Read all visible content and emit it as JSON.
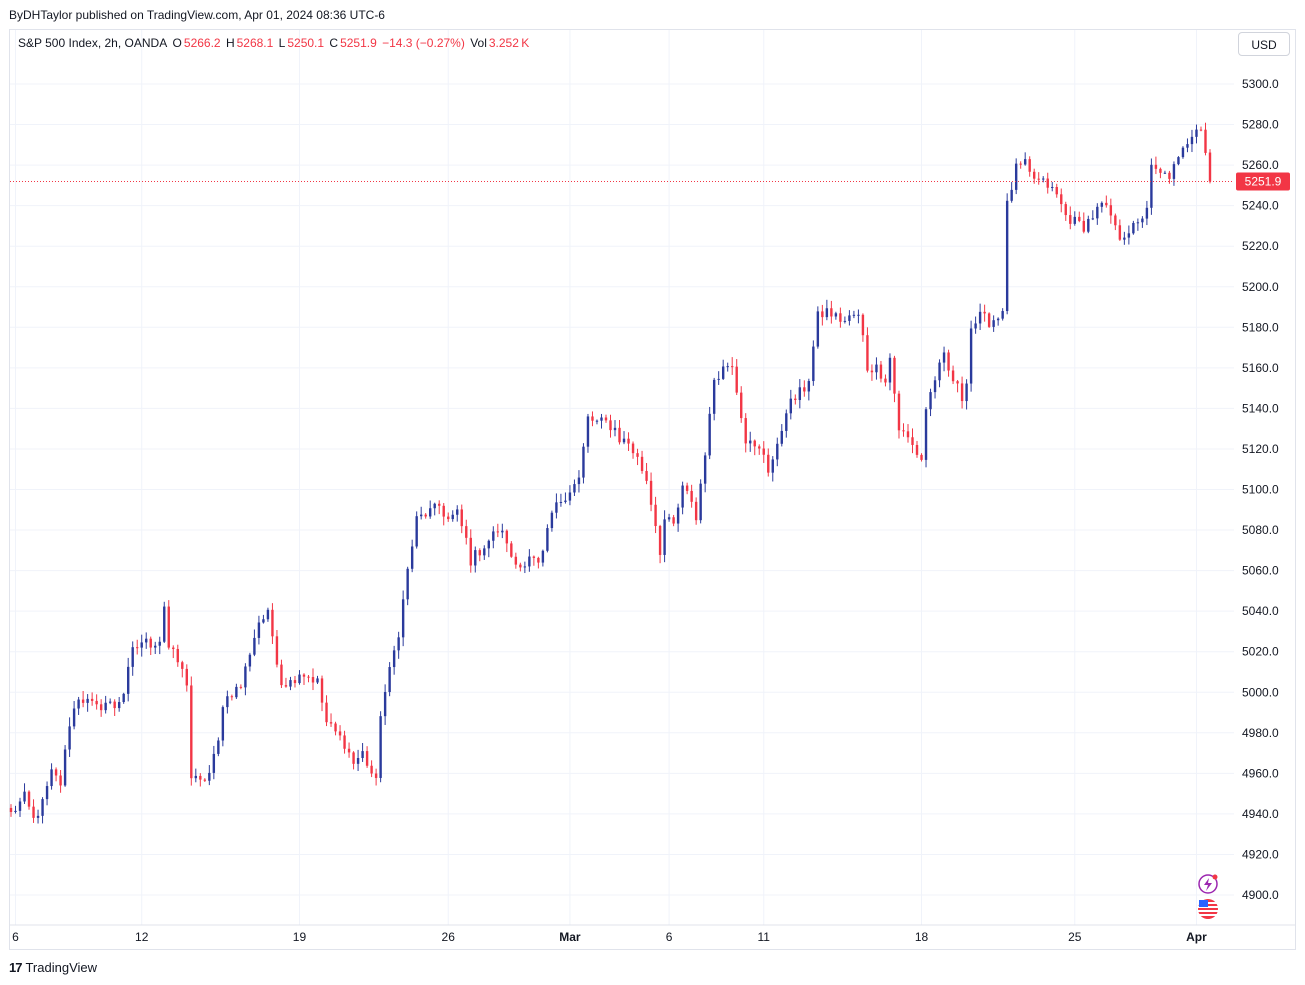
{
  "header": {
    "publisher_line": "ByDHTaylor published on TradingView.com, Apr 01, 2024 08:36 UTC-6"
  },
  "legend": {
    "symbol": "S&P 500 Index, 2h, OANDA",
    "o_label": "O",
    "o_value": "5266.2",
    "h_label": "H",
    "h_value": "5268.1",
    "l_label": "L",
    "l_value": "5250.1",
    "c_label": "C",
    "c_value": "5251.9",
    "change": "−14.3 (−0.27%)",
    "vol_label": "Vol",
    "vol_value": "3.252 K"
  },
  "toolbar": {
    "currency_label": "USD"
  },
  "footer": {
    "brand": "TradingView",
    "logo_text": "17"
  },
  "colors": {
    "up": "#2a3a9c",
    "down": "#f23645",
    "grid": "#f0f3fa",
    "text": "#131722"
  },
  "icons": [
    "flash-icon",
    "us-flag-icon"
  ],
  "chart_data": {
    "type": "candlestick",
    "title": "S&P 500 Index, 2h, OANDA",
    "ylim": [
      4892,
      5312
    ],
    "yticks": [
      4900,
      4920,
      4940,
      4960,
      4980,
      5000,
      5020,
      5040,
      5060,
      5080,
      5100,
      5120,
      5140,
      5160,
      5180,
      5200,
      5220,
      5240,
      5260,
      5280,
      5300
    ],
    "ytick_labels": [
      "4900.0",
      "4920.0",
      "4940.0",
      "4960.0",
      "4980.0",
      "5000.0",
      "5020.0",
      "5040.0",
      "5060.0",
      "5080.0",
      "5100.0",
      "5120.0",
      "5140.0",
      "5160.0",
      "5180.0",
      "5200.0",
      "5220.0",
      "5240.0",
      "5260.0",
      "5280.0",
      "5300.0"
    ],
    "xticks": [
      {
        "label": "6",
        "index": 1,
        "bold": false
      },
      {
        "label": "12",
        "index": 29,
        "bold": false
      },
      {
        "label": "19",
        "index": 64,
        "bold": false
      },
      {
        "label": "26",
        "index": 97,
        "bold": false
      },
      {
        "label": "Mar",
        "index": 124,
        "bold": true
      },
      {
        "label": "6",
        "index": 146,
        "bold": false
      },
      {
        "label": "11",
        "index": 167,
        "bold": false
      },
      {
        "label": "18",
        "index": 202,
        "bold": false
      },
      {
        "label": "25",
        "index": 236,
        "bold": false
      },
      {
        "label": "Apr",
        "index": 263,
        "bold": true
      }
    ],
    "last_price": 5251.9,
    "last_price_label": "5251.9",
    "anchors": [
      [
        0,
        4940
      ],
      [
        3,
        4948
      ],
      [
        5,
        4937
      ],
      [
        7,
        4945
      ],
      [
        9,
        4960
      ],
      [
        11,
        4955
      ],
      [
        13,
        4985
      ],
      [
        15,
        4998
      ],
      [
        17,
        4995
      ],
      [
        19,
        4992
      ],
      [
        21,
        4995
      ],
      [
        23,
        4993
      ],
      [
        25,
        5000
      ],
      [
        27,
        5020
      ],
      [
        29,
        5025
      ],
      [
        31,
        5024
      ],
      [
        33,
        5026
      ],
      [
        34,
        5043
      ],
      [
        35,
        5022
      ],
      [
        37,
        5015
      ],
      [
        39,
        5005
      ],
      [
        40,
        4958
      ],
      [
        42,
        4955
      ],
      [
        44,
        4960
      ],
      [
        46,
        4975
      ],
      [
        47,
        4995
      ],
      [
        49,
        5000
      ],
      [
        51,
        5003
      ],
      [
        53,
        5020
      ],
      [
        55,
        5035
      ],
      [
        57,
        5038
      ],
      [
        58,
        5028
      ],
      [
        60,
        5005
      ],
      [
        62,
        5005
      ],
      [
        64,
        5010
      ],
      [
        66,
        5008
      ],
      [
        68,
        5005
      ],
      [
        70,
        4985
      ],
      [
        72,
        4980
      ],
      [
        74,
        4975
      ],
      [
        76,
        4965
      ],
      [
        78,
        4970
      ],
      [
        80,
        4960
      ],
      [
        81,
        4955
      ],
      [
        82,
        4990
      ],
      [
        84,
        5010
      ],
      [
        86,
        5030
      ],
      [
        88,
        5060
      ],
      [
        90,
        5085
      ],
      [
        92,
        5088
      ],
      [
        94,
        5090
      ],
      [
        95,
        5092
      ],
      [
        97,
        5085
      ],
      [
        99,
        5088
      ],
      [
        101,
        5075
      ],
      [
        102,
        5065
      ],
      [
        104,
        5070
      ],
      [
        106,
        5075
      ],
      [
        108,
        5080
      ],
      [
        110,
        5075
      ],
      [
        111,
        5065
      ],
      [
        113,
        5062
      ],
      [
        115,
        5068
      ],
      [
        117,
        5062
      ],
      [
        118,
        5068
      ],
      [
        120,
        5088
      ],
      [
        122,
        5095
      ],
      [
        124,
        5100
      ],
      [
        126,
        5105
      ],
      [
        128,
        5135
      ],
      [
        130,
        5133
      ],
      [
        132,
        5133
      ],
      [
        134,
        5130
      ],
      [
        135,
        5125
      ],
      [
        137,
        5123
      ],
      [
        139,
        5115
      ],
      [
        141,
        5105
      ],
      [
        143,
        5083
      ],
      [
        144,
        5070
      ],
      [
        145,
        5085
      ],
      [
        147,
        5082
      ],
      [
        149,
        5100
      ],
      [
        151,
        5095
      ],
      [
        152,
        5085
      ],
      [
        153,
        5103
      ],
      [
        155,
        5135
      ],
      [
        156,
        5155
      ],
      [
        158,
        5160
      ],
      [
        160,
        5163
      ],
      [
        161,
        5150
      ],
      [
        163,
        5125
      ],
      [
        165,
        5120
      ],
      [
        167,
        5118
      ],
      [
        168,
        5110
      ],
      [
        170,
        5120
      ],
      [
        172,
        5140
      ],
      [
        174,
        5145
      ],
      [
        176,
        5150
      ],
      [
        177,
        5155
      ],
      [
        179,
        5185
      ],
      [
        181,
        5188
      ],
      [
        183,
        5185
      ],
      [
        185,
        5183
      ],
      [
        187,
        5186
      ],
      [
        188,
        5185
      ],
      [
        189,
        5175
      ],
      [
        190,
        5160
      ],
      [
        192,
        5160
      ],
      [
        194,
        5155
      ],
      [
        195,
        5165
      ],
      [
        197,
        5130
      ],
      [
        199,
        5125
      ],
      [
        201,
        5118
      ],
      [
        202,
        5115
      ],
      [
        203,
        5140
      ],
      [
        205,
        5155
      ],
      [
        207,
        5165
      ],
      [
        208,
        5158
      ],
      [
        210,
        5150
      ],
      [
        211,
        5145
      ],
      [
        212,
        5155
      ],
      [
        213,
        5180
      ],
      [
        215,
        5185
      ],
      [
        217,
        5183
      ],
      [
        219,
        5185
      ],
      [
        220,
        5190
      ],
      [
        221,
        5240
      ],
      [
        223,
        5258
      ],
      [
        225,
        5260
      ],
      [
        226,
        5255
      ],
      [
        228,
        5252
      ],
      [
        230,
        5250
      ],
      [
        232,
        5245
      ],
      [
        234,
        5235
      ],
      [
        236,
        5232
      ],
      [
        238,
        5230
      ],
      [
        240,
        5235
      ],
      [
        242,
        5240
      ],
      [
        244,
        5235
      ],
      [
        245,
        5228
      ],
      [
        246,
        5225
      ],
      [
        248,
        5228
      ],
      [
        250,
        5230
      ],
      [
        252,
        5240
      ],
      [
        253,
        5258
      ],
      [
        255,
        5255
      ],
      [
        257,
        5255
      ],
      [
        259,
        5262
      ],
      [
        261,
        5272
      ],
      [
        263,
        5280
      ],
      [
        264,
        5279
      ],
      [
        265,
        5266
      ],
      [
        266,
        5252
      ]
    ]
  }
}
